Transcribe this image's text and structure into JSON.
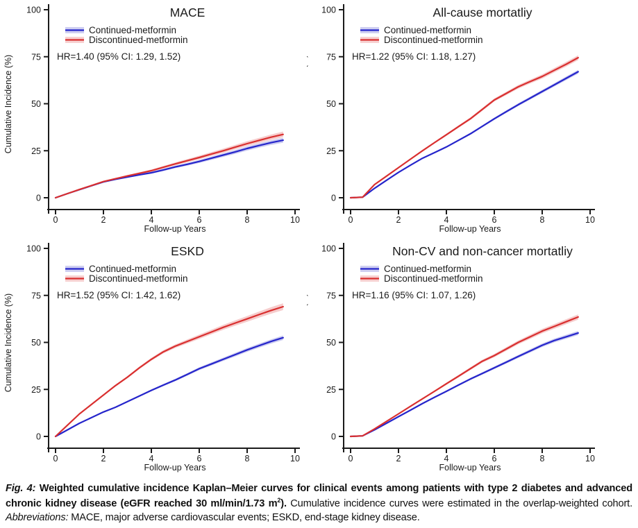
{
  "chart_data": [
    {
      "type": "line",
      "title": "MACE",
      "annotation": "HR=1.40 (95% CI: 1.29, 1.52)",
      "xlabel": "Follow-up Years",
      "ylabel": "Cumulative Incidence (%)",
      "xlim": [
        0,
        10
      ],
      "ylim": [
        0,
        100
      ],
      "x_ticks": [
        0,
        2,
        4,
        6,
        8,
        10
      ],
      "y_ticks": [
        0,
        25,
        50,
        75,
        100
      ],
      "legend_position": "top-left",
      "series": [
        {
          "name": "Continued-metformin",
          "color": "#2525cb",
          "band_color": "#9f9fe3",
          "ci_end_halfwidth_pct": 1.3,
          "points": [
            [
              0,
              0
            ],
            [
              0.5,
              2.2
            ],
            [
              1,
              4.3
            ],
            [
              1.5,
              6.4
            ],
            [
              2,
              8.4
            ],
            [
              2.5,
              9.8
            ],
            [
              3,
              11
            ],
            [
              3.5,
              12.2
            ],
            [
              4,
              13.3
            ],
            [
              4.5,
              14.8
            ],
            [
              5,
              16.4
            ],
            [
              5.5,
              17.8
            ],
            [
              6,
              19.3
            ],
            [
              6.5,
              21
            ],
            [
              7,
              22.7
            ],
            [
              7.5,
              24.4
            ],
            [
              8,
              26.2
            ],
            [
              8.5,
              27.8
            ],
            [
              9,
              29.3
            ],
            [
              9.5,
              30.6
            ]
          ]
        },
        {
          "name": "Discontinued-metformin",
          "color": "#d92f2f",
          "band_color": "#efa3a3",
          "ci_end_halfwidth_pct": 1.5,
          "points": [
            [
              0,
              0
            ],
            [
              0.5,
              2.2
            ],
            [
              1,
              4.4
            ],
            [
              1.5,
              6.5
            ],
            [
              2,
              8.6
            ],
            [
              2.5,
              10.1
            ],
            [
              3,
              11.6
            ],
            [
              3.5,
              13
            ],
            [
              4,
              14.4
            ],
            [
              4.5,
              16.2
            ],
            [
              5,
              18
            ],
            [
              5.5,
              19.7
            ],
            [
              6,
              21.4
            ],
            [
              6.5,
              23.2
            ],
            [
              7,
              25
            ],
            [
              7.5,
              26.9
            ],
            [
              8,
              28.8
            ],
            [
              8.5,
              30.5
            ],
            [
              9,
              32.2
            ],
            [
              9.5,
              33.7
            ]
          ]
        }
      ]
    },
    {
      "type": "line",
      "title": "All-cause mortatliy",
      "annotation": "HR=1.22 (95% CI: 1.18, 1.27)",
      "xlabel": "Follow-up Years",
      "ylabel": "Cumulative Incidence (%)",
      "xlim": [
        0,
        10
      ],
      "ylim": [
        0,
        100
      ],
      "x_ticks": [
        0,
        2,
        4,
        6,
        8,
        10
      ],
      "y_ticks": [
        0,
        25,
        50,
        75,
        100
      ],
      "legend_position": "top-left",
      "series": [
        {
          "name": "Continued-metformin",
          "color": "#2525cb",
          "band_color": "#9f9fe3",
          "ci_end_halfwidth_pct": 1.0,
          "points": [
            [
              0,
              0
            ],
            [
              0.5,
              0.3
            ],
            [
              1,
              5
            ],
            [
              1.5,
              9.3
            ],
            [
              2,
              13.5
            ],
            [
              2.5,
              17.3
            ],
            [
              3,
              21
            ],
            [
              3.5,
              24
            ],
            [
              4,
              27
            ],
            [
              4.5,
              30.5
            ],
            [
              5,
              34
            ],
            [
              5.5,
              38
            ],
            [
              6,
              42
            ],
            [
              6.5,
              45.8
            ],
            [
              7,
              49.5
            ],
            [
              7.5,
              53
            ],
            [
              8,
              56.5
            ],
            [
              8.5,
              60
            ],
            [
              9,
              63.5
            ],
            [
              9.5,
              67
            ]
          ]
        },
        {
          "name": "Discontinued-metformin",
          "color": "#d92f2f",
          "band_color": "#efa3a3",
          "ci_end_halfwidth_pct": 1.3,
          "points": [
            [
              0,
              0
            ],
            [
              0.5,
              0.3
            ],
            [
              1,
              7
            ],
            [
              1.5,
              11.5
            ],
            [
              2,
              16
            ],
            [
              2.5,
              20.5
            ],
            [
              3,
              25
            ],
            [
              3.5,
              29.3
            ],
            [
              4,
              33.5
            ],
            [
              4.5,
              37.8
            ],
            [
              5,
              42
            ],
            [
              5.5,
              47
            ],
            [
              6,
              52
            ],
            [
              6.5,
              55.5
            ],
            [
              7,
              59
            ],
            [
              7.5,
              61.8
            ],
            [
              8,
              64.5
            ],
            [
              8.5,
              67.8
            ],
            [
              9,
              71
            ],
            [
              9.5,
              74.5
            ]
          ]
        }
      ]
    },
    {
      "type": "line",
      "title": "ESKD",
      "annotation": "HR=1.52 (95% CI: 1.42, 1.62)",
      "xlabel": "Follow-up Years",
      "ylabel": "Cumulative Incidence (%)",
      "xlim": [
        0,
        10
      ],
      "ylim": [
        0,
        100
      ],
      "x_ticks": [
        0,
        2,
        4,
        6,
        8,
        10
      ],
      "y_ticks": [
        0,
        25,
        50,
        75,
        100
      ],
      "legend_position": "top-left",
      "series": [
        {
          "name": "Continued-metformin",
          "color": "#2525cb",
          "band_color": "#9f9fe3",
          "ci_end_halfwidth_pct": 1.2,
          "points": [
            [
              0,
              0
            ],
            [
              0.5,
              3.5
            ],
            [
              1,
              7
            ],
            [
              1.5,
              10
            ],
            [
              2,
              13
            ],
            [
              2.5,
              15.5
            ],
            [
              3,
              18.5
            ],
            [
              3.5,
              21.5
            ],
            [
              4,
              24.5
            ],
            [
              4.5,
              27.3
            ],
            [
              5,
              30
            ],
            [
              5.5,
              33
            ],
            [
              6,
              36
            ],
            [
              6.5,
              38.5
            ],
            [
              7,
              41
            ],
            [
              7.5,
              43.5
            ],
            [
              8,
              46
            ],
            [
              8.5,
              48.3
            ],
            [
              9,
              50.5
            ],
            [
              9.5,
              52.5
            ]
          ]
        },
        {
          "name": "Discontinued-metformin",
          "color": "#d92f2f",
          "band_color": "#efa3a3",
          "ci_end_halfwidth_pct": 1.8,
          "points": [
            [
              0,
              0
            ],
            [
              0.5,
              6
            ],
            [
              1,
              12
            ],
            [
              1.5,
              17
            ],
            [
              2,
              22
            ],
            [
              2.5,
              27
            ],
            [
              3,
              31.5
            ],
            [
              3.5,
              36.5
            ],
            [
              4,
              41
            ],
            [
              4.5,
              45
            ],
            [
              5,
              48
            ],
            [
              5.5,
              50.5
            ],
            [
              6,
              53
            ],
            [
              6.5,
              55.5
            ],
            [
              7,
              58
            ],
            [
              7.5,
              60.3
            ],
            [
              8,
              62.5
            ],
            [
              8.5,
              64.8
            ],
            [
              9,
              67
            ],
            [
              9.5,
              69
            ]
          ]
        }
      ]
    },
    {
      "type": "line",
      "title": "Non-CV and non-cancer mortatliy",
      "annotation": "HR=1.16 (95% CI: 1.07, 1.26)",
      "xlabel": "Follow-up Years",
      "ylabel": "Cumulative Incidence (%)",
      "xlim": [
        0,
        10
      ],
      "ylim": [
        0,
        100
      ],
      "x_ticks": [
        0,
        2,
        4,
        6,
        8,
        10
      ],
      "y_ticks": [
        0,
        25,
        50,
        75,
        100
      ],
      "legend_position": "top-left",
      "series": [
        {
          "name": "Continued-metformin",
          "color": "#2525cb",
          "band_color": "#9f9fe3",
          "ci_end_halfwidth_pct": 1.1,
          "points": [
            [
              0,
              0
            ],
            [
              0.5,
              0.3
            ],
            [
              1,
              3.5
            ],
            [
              1.5,
              7
            ],
            [
              2,
              10.5
            ],
            [
              2.5,
              14
            ],
            [
              3,
              17.5
            ],
            [
              3.5,
              20.8
            ],
            [
              4,
              24
            ],
            [
              4.5,
              27.3
            ],
            [
              5,
              30.5
            ],
            [
              5.5,
              33.5
            ],
            [
              6,
              36.5
            ],
            [
              6.5,
              39.5
            ],
            [
              7,
              42.5
            ],
            [
              7.5,
              45.5
            ],
            [
              8,
              48.5
            ],
            [
              8.5,
              51
            ],
            [
              9,
              53
            ],
            [
              9.5,
              55
            ]
          ]
        },
        {
          "name": "Discontinued-metformin",
          "color": "#d92f2f",
          "band_color": "#efa3a3",
          "ci_end_halfwidth_pct": 1.4,
          "points": [
            [
              0,
              0
            ],
            [
              0.5,
              0.3
            ],
            [
              1,
              4
            ],
            [
              1.5,
              8
            ],
            [
              2,
              12
            ],
            [
              2.5,
              16
            ],
            [
              3,
              20
            ],
            [
              3.5,
              24
            ],
            [
              4,
              28
            ],
            [
              4.5,
              32
            ],
            [
              5,
              36
            ],
            [
              5.5,
              40
            ],
            [
              6,
              43
            ],
            [
              6.5,
              46.5
            ],
            [
              7,
              50
            ],
            [
              7.5,
              53
            ],
            [
              8,
              56
            ],
            [
              8.5,
              58.5
            ],
            [
              9,
              61
            ],
            [
              9.5,
              63.5
            ]
          ]
        }
      ]
    }
  ],
  "caption": {
    "label": "Fig. 4:",
    "bold_main": "Weighted cumulative incidence Kaplan–Meier curves for clinical events among patients with type 2 diabetes and advanced chronic kidney disease (eGFR reached 30 ml/min/1.73 m",
    "bold_sup": "2",
    "bold_close": ").",
    "regular": "Cumulative incidence curves were estimated in the overlap-weighted cohort.",
    "abbrev_label": "Abbreviations:",
    "abbrev_text": "MACE, major adverse cardiovascular events; ESKD, end-stage kidney disease."
  },
  "colors": {
    "continued_line": "#2525cb",
    "discontinued_line": "#d92f2f",
    "continued_band": "#9f9fe3",
    "discontinued_band": "#efa3a3",
    "axis": "#1a1a1a"
  }
}
